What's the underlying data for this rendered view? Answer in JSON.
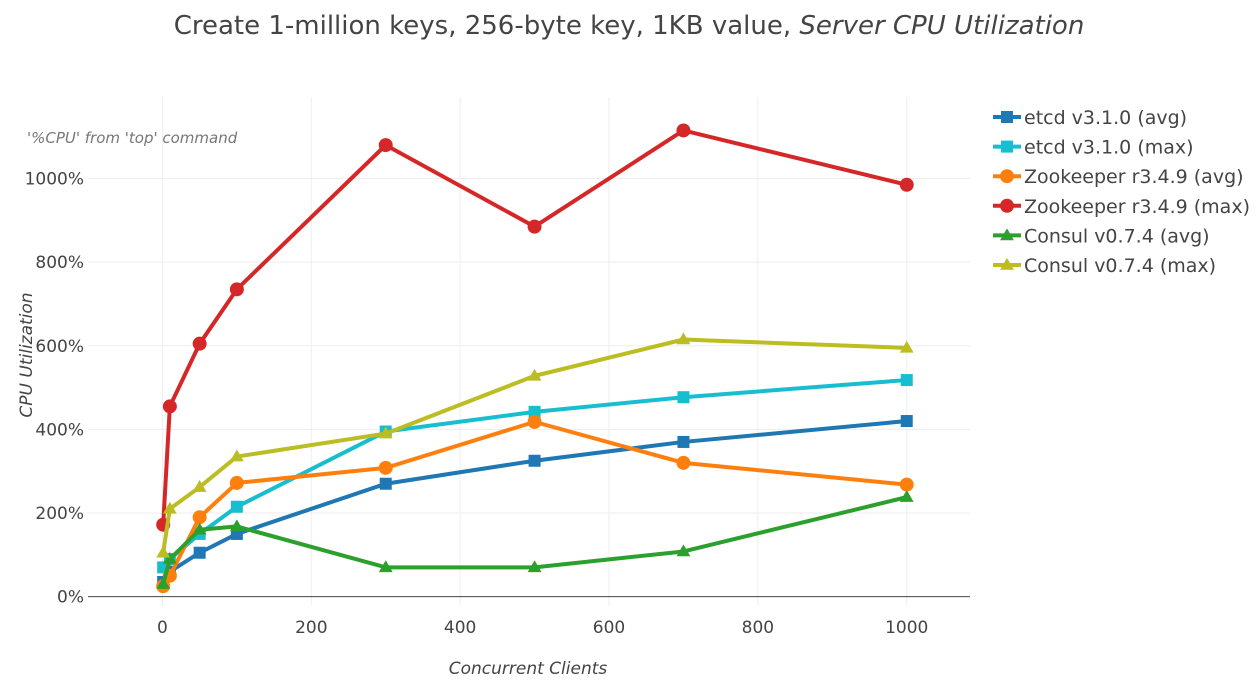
{
  "chart_data": {
    "type": "line",
    "title": "Create 1-million keys, 256-byte key, 1KB value, ",
    "title_italic": "Server CPU Utilization",
    "xlabel": "Concurrent Clients",
    "ylabel": "CPU Utilization",
    "annotation": "'%CPU' from 'top' command",
    "xlim": [
      -100,
      1085
    ],
    "ylim": [
      -20,
      1195
    ],
    "xticks": [
      0,
      200,
      400,
      600,
      800,
      1000
    ],
    "xtick_labels": [
      "0",
      "200",
      "400",
      "600",
      "800",
      "1000"
    ],
    "yticks": [
      0,
      200,
      400,
      600,
      800,
      1000
    ],
    "ytick_labels": [
      "0%",
      "200%",
      "400%",
      "600%",
      "800%",
      "1000%"
    ],
    "grid": true,
    "legend_position": "right",
    "x": [
      1,
      10,
      50,
      100,
      300,
      500,
      700,
      1000
    ],
    "series": [
      {
        "name": "etcd v3.1.0 (avg)",
        "color": "#1f77b4",
        "marker": "square",
        "values": [
          35,
          60,
          105,
          150,
          270,
          325,
          370,
          420
        ]
      },
      {
        "name": "etcd v3.1.0 (max)",
        "color": "#17becf",
        "marker": "square",
        "values": [
          70,
          90,
          150,
          215,
          395,
          442,
          477,
          518
        ]
      },
      {
        "name": "Zookeeper r3.4.9 (avg)",
        "color": "#ff7f0e",
        "marker": "circle",
        "values": [
          25,
          50,
          190,
          272,
          308,
          418,
          320,
          268
        ]
      },
      {
        "name": "Zookeeper r3.4.9 (max)",
        "color": "#d62728",
        "marker": "circle",
        "values": [
          172,
          455,
          605,
          735,
          1080,
          885,
          1115,
          985
        ]
      },
      {
        "name": "Consul v0.7.4 (avg)",
        "color": "#2ca02c",
        "marker": "triangle",
        "values": [
          30,
          90,
          160,
          168,
          70,
          70,
          108,
          238
        ]
      },
      {
        "name": "Consul v0.7.4 (max)",
        "color": "#bcbd22",
        "marker": "triangle",
        "values": [
          105,
          210,
          262,
          335,
          390,
          528,
          615,
          595
        ]
      }
    ]
  }
}
